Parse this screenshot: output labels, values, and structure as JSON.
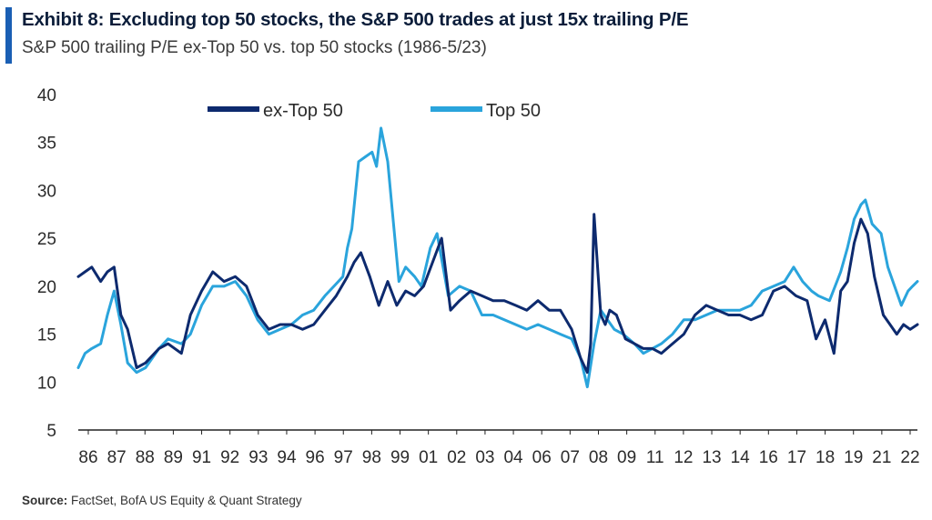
{
  "header": {
    "title": "Exhibit 8: Excluding top 50 stocks, the S&P 500 trades at just 15x trailing P/E",
    "subtitle": "S&P 500 trailing P/E ex-Top 50 vs. top 50 stocks (1986-5/23)"
  },
  "footer": {
    "source_label": "Source:",
    "source_text": "FactSet, BofA US Equity & Quant Strategy"
  },
  "colors": {
    "accent": "#1a5fb4",
    "ex_top50": "#0d2a6e",
    "top50": "#2aa4dc"
  },
  "chart_data": {
    "type": "line",
    "title": "",
    "xlabel": "",
    "ylabel": "",
    "ylim": [
      5,
      40
    ],
    "y_ticks": [
      5,
      10,
      15,
      20,
      25,
      30,
      35,
      40
    ],
    "x_range": [
      1986.0,
      2023.42
    ],
    "x_tick_labels": [
      "86",
      "87",
      "88",
      "89",
      "91",
      "92",
      "93",
      "94",
      "96",
      "97",
      "98",
      "99",
      "01",
      "02",
      "03",
      "04",
      "06",
      "07",
      "08",
      "09",
      "11",
      "12",
      "13",
      "14",
      "16",
      "17",
      "18",
      "19",
      "21",
      "22"
    ],
    "legend_position": "top",
    "grid": false,
    "series": [
      {
        "name": "ex-Top 50",
        "color": "#0d2a6e",
        "x": [
          1986.0,
          1986.3,
          1986.6,
          1987.0,
          1987.3,
          1987.6,
          1987.9,
          1988.2,
          1988.6,
          1989.0,
          1989.6,
          1990.0,
          1990.6,
          1991.0,
          1991.5,
          1992.0,
          1992.5,
          1993.0,
          1993.5,
          1994.0,
          1994.5,
          1995.0,
          1995.5,
          1996.0,
          1996.5,
          1997.0,
          1997.5,
          1998.0,
          1998.3,
          1998.6,
          1999.0,
          1999.4,
          1999.8,
          2000.2,
          2000.6,
          2001.0,
          2001.4,
          2001.8,
          2002.2,
          2002.6,
          2003.0,
          2003.5,
          2004.0,
          2004.5,
          2005.0,
          2005.5,
          2006.0,
          2006.5,
          2007.0,
          2007.5,
          2008.0,
          2008.4,
          2008.7,
          2008.85,
          2009.0,
          2009.3,
          2009.5,
          2009.7,
          2010.0,
          2010.4,
          2010.8,
          2011.2,
          2011.6,
          2012.0,
          2012.5,
          2013.0,
          2013.5,
          2014.0,
          2014.5,
          2015.0,
          2015.5,
          2016.0,
          2016.5,
          2017.0,
          2017.5,
          2018.0,
          2018.5,
          2018.9,
          2019.3,
          2019.7,
          2020.0,
          2020.3,
          2020.6,
          2020.9,
          2021.2,
          2021.5,
          2021.9,
          2022.2,
          2022.5,
          2022.8,
          2023.1,
          2023.42
        ],
        "values": [
          21.0,
          21.5,
          22.0,
          20.5,
          21.5,
          22.0,
          17.0,
          15.5,
          11.5,
          12.0,
          13.5,
          14.0,
          13.0,
          17.0,
          19.5,
          21.5,
          20.5,
          21.0,
          20.0,
          17.0,
          15.5,
          16.0,
          16.0,
          15.5,
          16.0,
          17.5,
          19.0,
          21.0,
          22.5,
          23.5,
          21.0,
          18.0,
          20.5,
          18.0,
          19.5,
          19.0,
          20.0,
          22.5,
          25.0,
          17.5,
          18.5,
          19.5,
          19.0,
          18.5,
          18.5,
          18.0,
          17.5,
          18.5,
          17.5,
          17.5,
          15.5,
          12.5,
          11.0,
          14.0,
          27.5,
          17.0,
          16.0,
          17.5,
          17.0,
          14.5,
          14.0,
          13.5,
          13.5,
          13.0,
          14.0,
          15.0,
          17.0,
          18.0,
          17.5,
          17.0,
          17.0,
          16.5,
          17.0,
          19.5,
          20.0,
          19.0,
          18.5,
          14.5,
          16.5,
          13.0,
          19.5,
          20.5,
          24.5,
          27.0,
          25.5,
          21.0,
          17.0,
          16.0,
          15.0,
          16.0,
          15.5,
          16.0
        ]
      },
      {
        "name": "Top 50",
        "color": "#2aa4dc",
        "x": [
          1986.0,
          1986.3,
          1986.6,
          1987.0,
          1987.3,
          1987.6,
          1987.9,
          1988.2,
          1988.6,
          1989.0,
          1989.6,
          1990.0,
          1990.6,
          1991.0,
          1991.5,
          1992.0,
          1992.5,
          1993.0,
          1993.5,
          1994.0,
          1994.5,
          1995.0,
          1995.5,
          1996.0,
          1996.5,
          1997.0,
          1997.4,
          1997.8,
          1998.0,
          1998.2,
          1998.5,
          1998.8,
          1999.1,
          1999.3,
          1999.5,
          1999.8,
          2000.0,
          2000.3,
          2000.6,
          2001.0,
          2001.3,
          2001.7,
          2002.0,
          2002.5,
          2003.0,
          2003.5,
          2004.0,
          2004.5,
          2005.0,
          2005.5,
          2006.0,
          2006.5,
          2007.0,
          2007.5,
          2008.0,
          2008.4,
          2008.7,
          2009.0,
          2009.3,
          2009.6,
          2009.9,
          2010.3,
          2010.8,
          2011.2,
          2011.6,
          2012.0,
          2012.5,
          2013.0,
          2013.5,
          2014.0,
          2014.5,
          2015.0,
          2015.5,
          2016.0,
          2016.5,
          2017.0,
          2017.5,
          2017.9,
          2018.3,
          2018.7,
          2019.0,
          2019.5,
          2020.0,
          2020.3,
          2020.6,
          2020.9,
          2021.1,
          2021.4,
          2021.8,
          2022.1,
          2022.4,
          2022.7,
          2023.0,
          2023.2,
          2023.42
        ],
        "values": [
          11.5,
          13.0,
          13.5,
          14.0,
          17.0,
          19.5,
          16.0,
          12.0,
          11.0,
          11.5,
          13.5,
          14.5,
          14.0,
          15.0,
          18.0,
          20.0,
          20.0,
          20.5,
          19.0,
          16.5,
          15.0,
          15.5,
          16.0,
          17.0,
          17.5,
          19.0,
          20.0,
          21.0,
          24.0,
          26.0,
          33.0,
          33.5,
          34.0,
          32.5,
          36.5,
          33.0,
          28.0,
          20.5,
          22.0,
          21.0,
          20.0,
          24.0,
          25.5,
          19.0,
          20.0,
          19.5,
          17.0,
          17.0,
          16.5,
          16.0,
          15.5,
          16.0,
          15.5,
          15.0,
          14.5,
          12.5,
          9.5,
          14.0,
          17.5,
          16.5,
          15.5,
          15.0,
          14.0,
          13.0,
          13.5,
          14.0,
          15.0,
          16.5,
          16.5,
          17.0,
          17.5,
          17.5,
          17.5,
          18.0,
          19.5,
          20.0,
          20.5,
          22.0,
          20.5,
          19.5,
          19.0,
          18.5,
          21.5,
          24.0,
          27.0,
          28.5,
          29.0,
          26.5,
          25.5,
          22.0,
          20.0,
          18.0,
          19.5,
          20.0,
          20.5
        ]
      }
    ]
  }
}
